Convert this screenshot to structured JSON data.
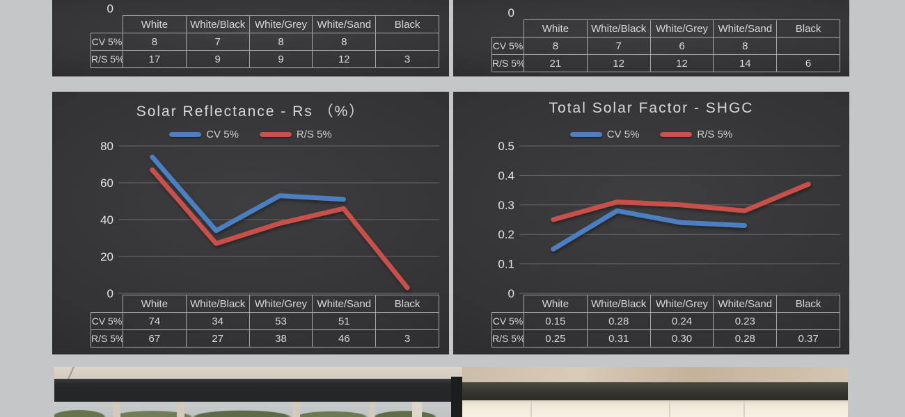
{
  "colors": {
    "page_background": "#c5c6c8",
    "panel_background": "#333335",
    "table_border": "#a9a9a9",
    "text_light": "#d9d9d9",
    "gridline": "#686868",
    "cv_blue": "#4b7fc1",
    "rs_red": "#c7504a"
  },
  "chart_data": [
    {
      "id": "top_left",
      "type": "table",
      "visible_axis_label": "0",
      "categories": [
        "White",
        "White/Black",
        "White/Grey",
        "White/Sand",
        "Black"
      ],
      "series": [
        {
          "name": "CV 5%",
          "key": "cv",
          "values": [
            8,
            7,
            8,
            8,
            null
          ],
          "labels": [
            "8",
            "7",
            "8",
            "8",
            ""
          ]
        },
        {
          "name": "R/S 5%",
          "key": "rs",
          "values": [
            17,
            9,
            9,
            12,
            3
          ],
          "labels": [
            "17",
            "9",
            "9",
            "12",
            "3"
          ]
        }
      ]
    },
    {
      "id": "top_right",
      "type": "table",
      "visible_axis_label": "0",
      "categories": [
        "White",
        "White/Black",
        "White/Grey",
        "White/Sand",
        "Black"
      ],
      "series": [
        {
          "name": "CV 5%",
          "key": "cv",
          "values": [
            8,
            7,
            6,
            8,
            null
          ],
          "labels": [
            "8",
            "7",
            "6",
            "8",
            ""
          ]
        },
        {
          "name": "R/S 5%",
          "key": "rs",
          "values": [
            21,
            12,
            12,
            14,
            6
          ],
          "labels": [
            "21",
            "12",
            "12",
            "14",
            "6"
          ]
        }
      ]
    },
    {
      "id": "solar_reflectance",
      "type": "line",
      "title": "Solar Reflectance - Rs （%）",
      "categories": [
        "White",
        "White/Black",
        "White/Grey",
        "White/Sand",
        "Black"
      ],
      "ylim": [
        0,
        80
      ],
      "yticks": [
        80,
        60,
        40,
        20,
        0
      ],
      "ytick_labels": [
        "80",
        "60",
        "40",
        "20",
        "0"
      ],
      "grid": true,
      "legend_position": "top",
      "series": [
        {
          "name": "CV 5%",
          "key": "cv",
          "color": "#4b7fc1",
          "values": [
            74,
            34,
            53,
            51,
            null
          ],
          "labels": [
            "74",
            "34",
            "53",
            "51",
            ""
          ]
        },
        {
          "name": "R/S 5%",
          "key": "rs",
          "color": "#c7504a",
          "values": [
            67,
            27,
            38,
            46,
            3
          ],
          "labels": [
            "67",
            "27",
            "38",
            "46",
            "3"
          ]
        }
      ]
    },
    {
      "id": "shgc",
      "type": "line",
      "title": "Total Solar Factor - SHGC",
      "categories": [
        "White",
        "White/Black",
        "White/Grey",
        "White/Sand",
        "Black"
      ],
      "ylim": [
        0,
        0.5
      ],
      "yticks": [
        0.5,
        0.4,
        0.3,
        0.2,
        0.1,
        0
      ],
      "ytick_labels": [
        "0.5",
        "0.4",
        "0.3",
        "0.2",
        "0.1",
        "0"
      ],
      "grid": true,
      "legend_position": "top",
      "series": [
        {
          "name": "CV 5%",
          "key": "cv",
          "color": "#4b7fc1",
          "values": [
            0.15,
            0.28,
            0.24,
            0.23,
            null
          ],
          "labels": [
            "0.15",
            "0.28",
            "0.24",
            "0.23",
            ""
          ]
        },
        {
          "name": "R/S 5%",
          "key": "rs",
          "color": "#c7504a",
          "values": [
            0.25,
            0.31,
            0.3,
            0.28,
            0.37
          ],
          "labels": [
            "0.25",
            "0.31",
            "0.30",
            "0.28",
            "0.37"
          ]
        }
      ]
    }
  ]
}
